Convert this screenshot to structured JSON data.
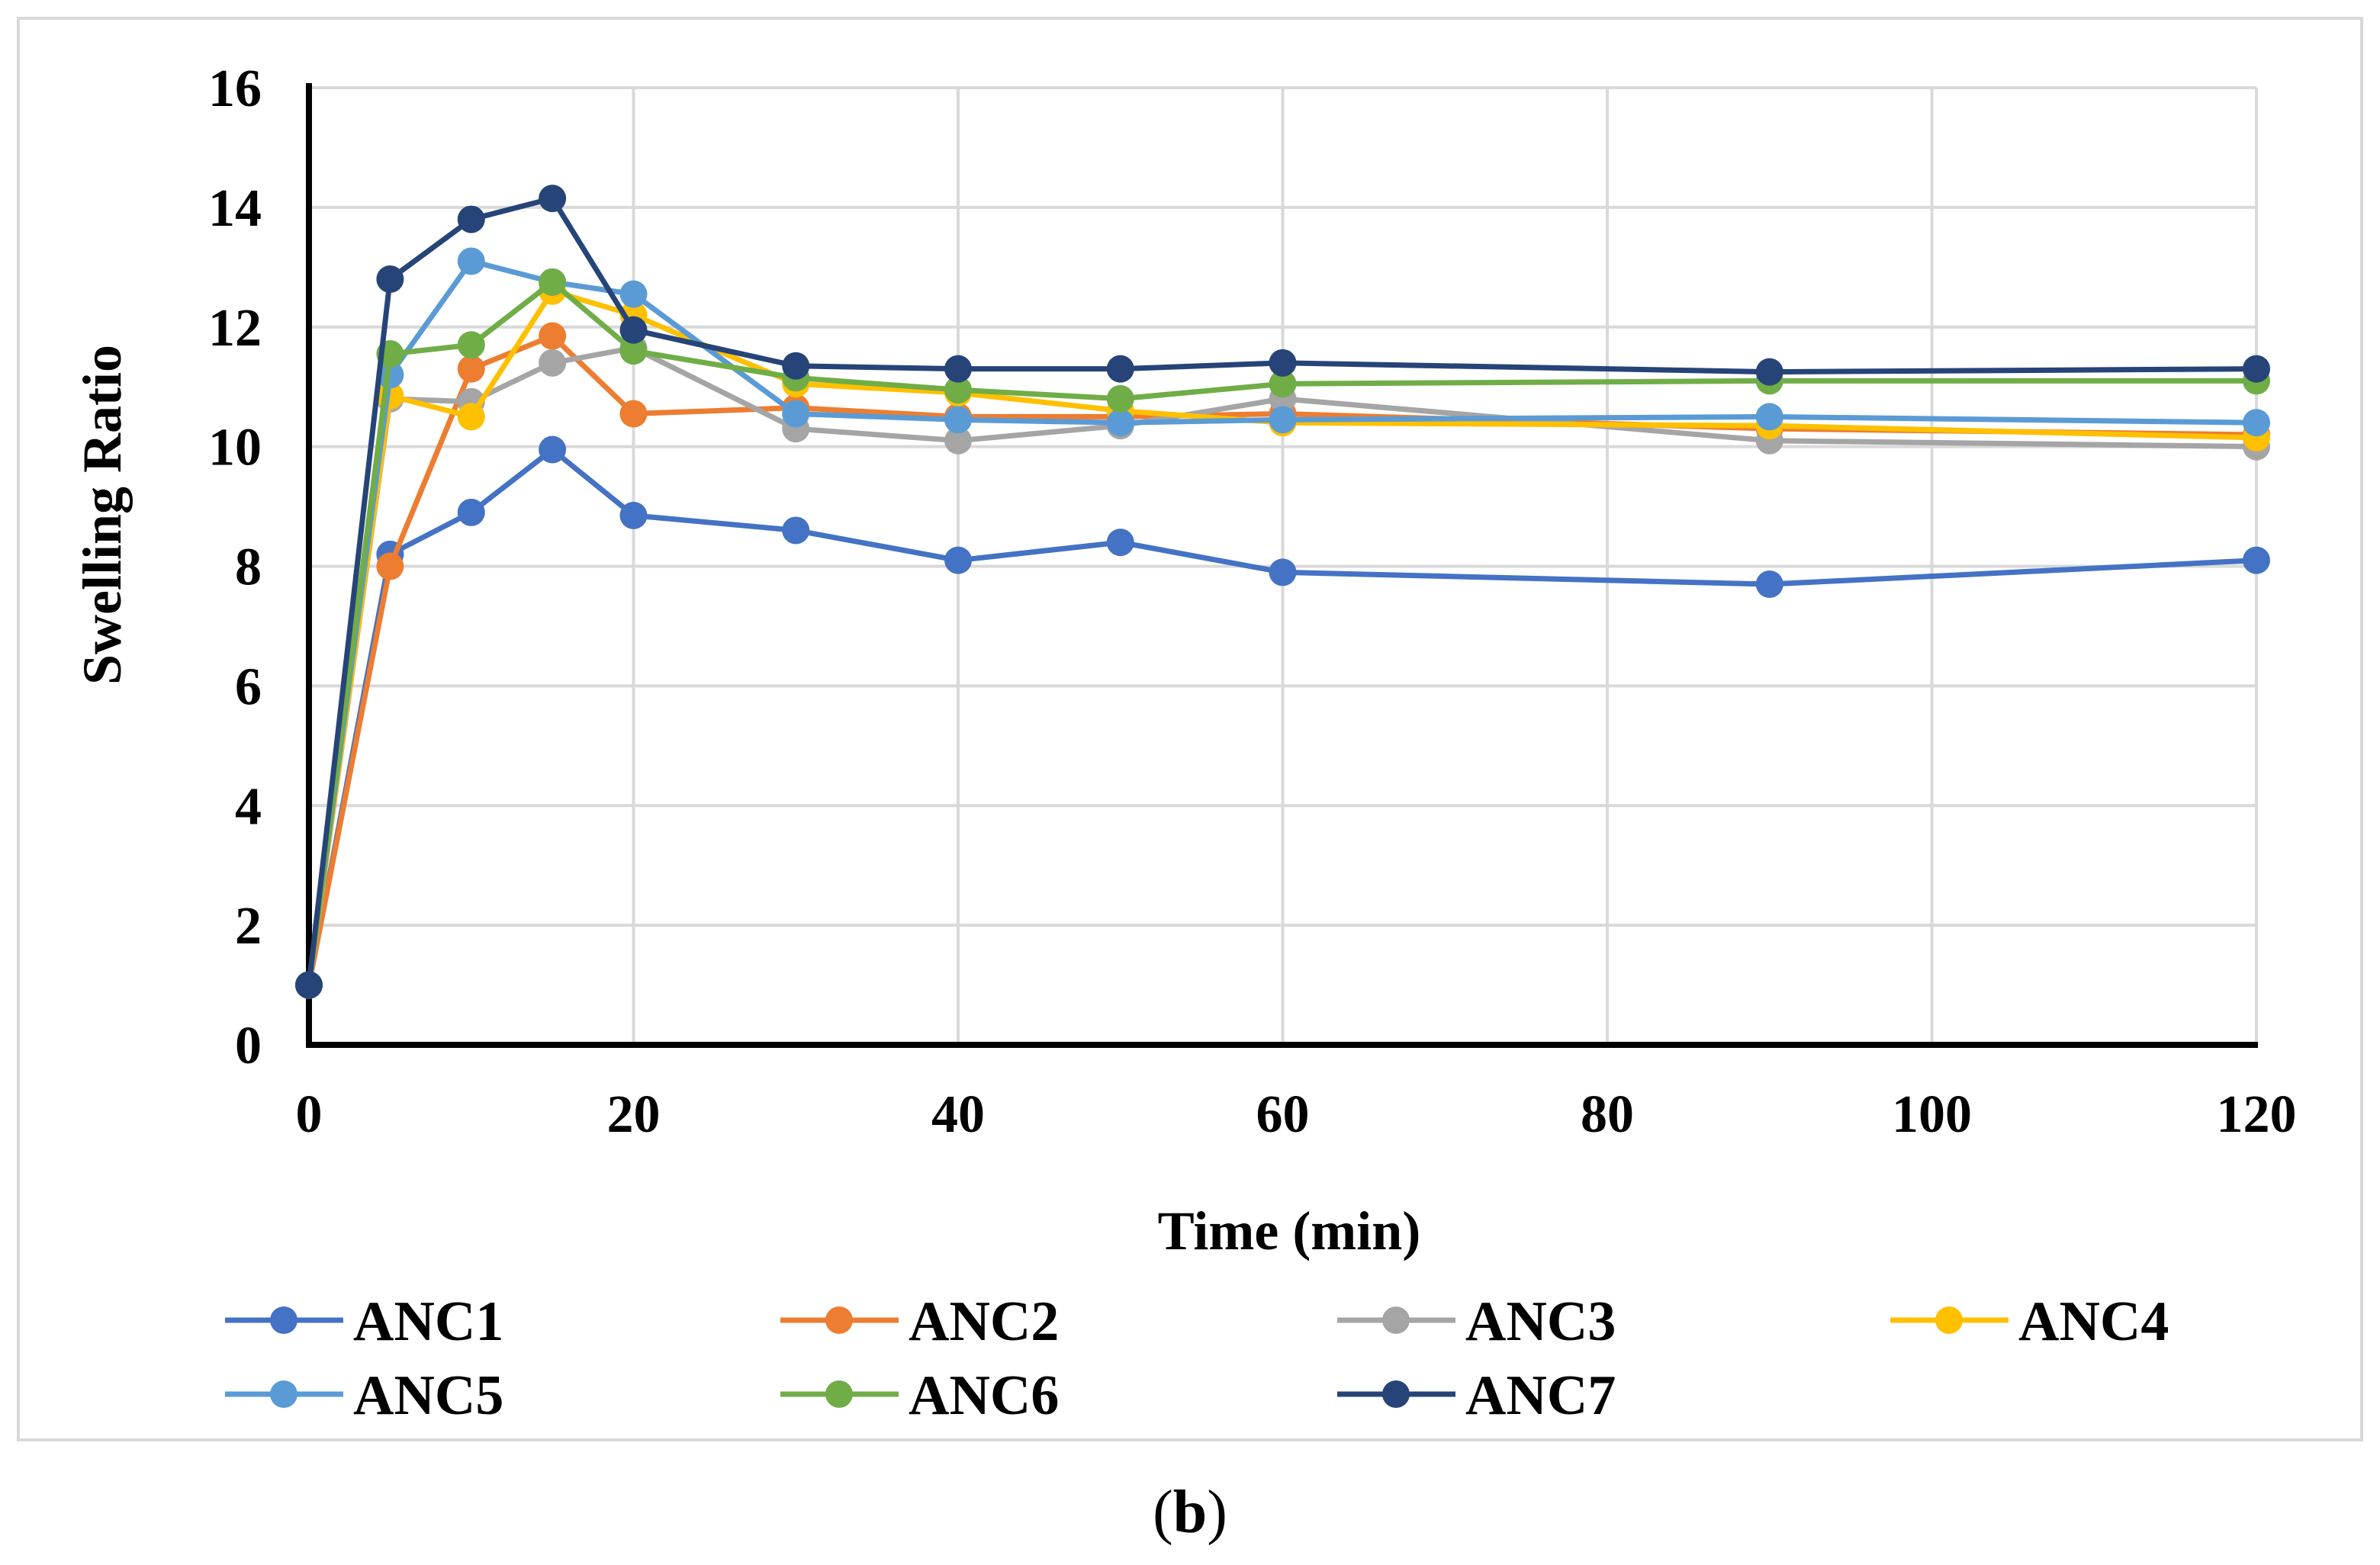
{
  "chart_data": {
    "type": "line",
    "title": "",
    "xlabel": "Time (min)",
    "ylabel": "Swelling Ratio",
    "xlim": [
      0,
      120
    ],
    "ylim": [
      0,
      16
    ],
    "xticks": [
      0,
      20,
      40,
      60,
      80,
      100,
      120
    ],
    "yticks": [
      0,
      2,
      4,
      6,
      8,
      10,
      12,
      14,
      16
    ],
    "grid": true,
    "legend_position": "bottom",
    "x": [
      0,
      5,
      10,
      15,
      20,
      30,
      40,
      50,
      60,
      90,
      120
    ],
    "series": [
      {
        "name": "ANC1",
        "color": "#4472c4",
        "values": [
          1.0,
          8.2,
          8.9,
          9.95,
          8.85,
          8.6,
          8.1,
          8.4,
          7.9,
          7.7,
          8.1
        ]
      },
      {
        "name": "ANC2",
        "color": "#ed7d31",
        "values": [
          1.0,
          8.0,
          11.3,
          11.85,
          10.55,
          10.65,
          10.5,
          10.5,
          10.55,
          10.3,
          10.2
        ]
      },
      {
        "name": "ANC3",
        "color": "#a5a5a5",
        "values": [
          1.0,
          10.8,
          10.75,
          11.4,
          11.65,
          10.3,
          10.1,
          10.35,
          10.8,
          10.1,
          10.0
        ]
      },
      {
        "name": "ANC4",
        "color": "#ffc000",
        "values": [
          1.0,
          10.85,
          10.5,
          12.6,
          12.2,
          11.05,
          10.9,
          10.6,
          10.4,
          10.35,
          10.15
        ]
      },
      {
        "name": "ANC5",
        "color": "#5b9bd5",
        "values": [
          1.0,
          11.2,
          13.1,
          12.75,
          12.55,
          10.55,
          10.45,
          10.4,
          10.45,
          10.5,
          10.4
        ]
      },
      {
        "name": "ANC6",
        "color": "#70ad47",
        "values": [
          1.0,
          11.55,
          11.7,
          12.75,
          11.6,
          11.15,
          10.95,
          10.8,
          11.05,
          11.1,
          11.1
        ]
      },
      {
        "name": "ANC7",
        "color": "#264478",
        "values": [
          1.0,
          12.8,
          13.8,
          14.15,
          11.95,
          11.35,
          11.3,
          11.3,
          11.4,
          11.25,
          11.3
        ]
      }
    ]
  },
  "caption": {
    "open": "(",
    "letter": "b",
    "close": ")"
  }
}
